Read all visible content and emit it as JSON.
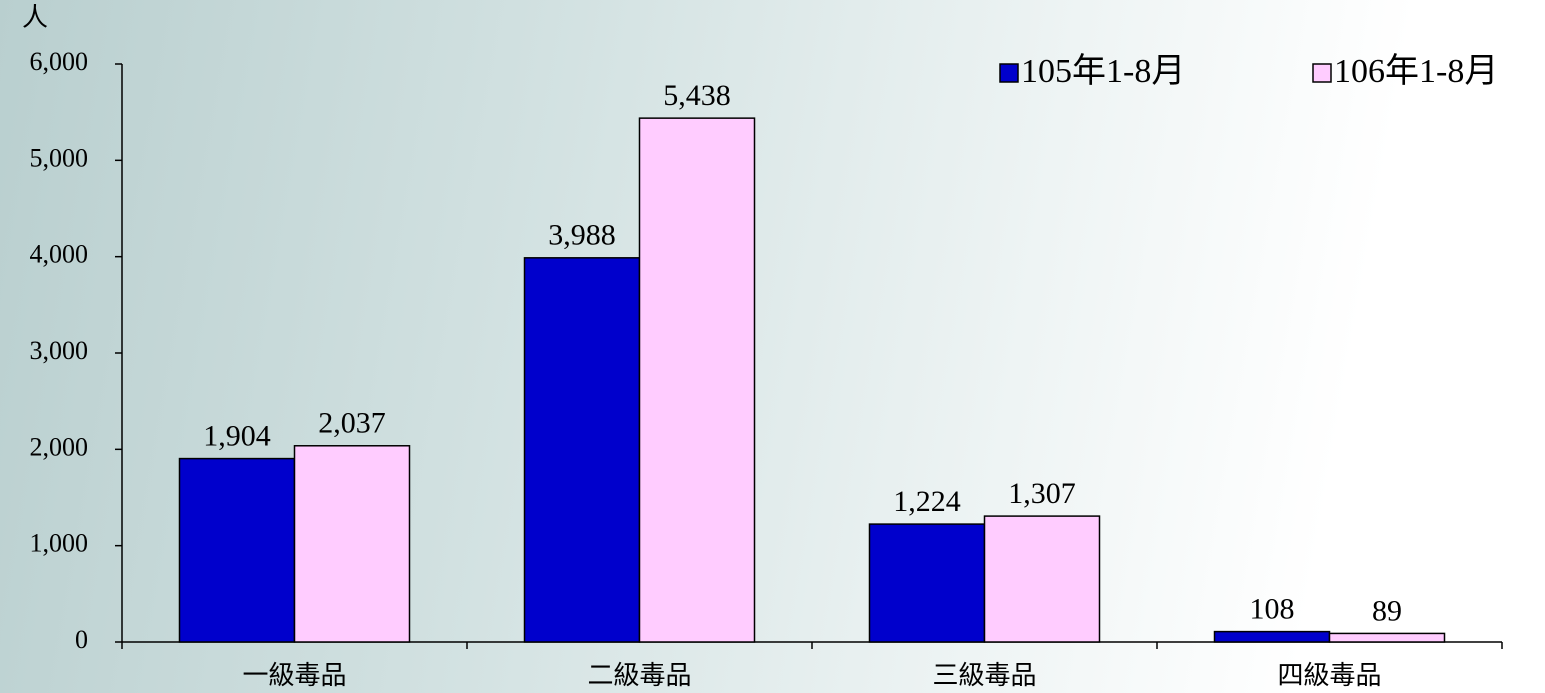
{
  "chart_data": {
    "type": "bar",
    "y_label": "人",
    "categories": [
      "一級毒品",
      "二級毒品",
      "三級毒品",
      "四級毒品"
    ],
    "series": [
      {
        "name": "105年1-8月",
        "color": "#0000cc",
        "values": [
          1904,
          3988,
          1224,
          108
        ],
        "value_labels": [
          "1,904",
          "3,988",
          "1,224",
          "108"
        ]
      },
      {
        "name": "106年1-8月",
        "color": "#ffccff",
        "values": [
          2037,
          5438,
          1307,
          89
        ],
        "value_labels": [
          "2,037",
          "5,438",
          "1,307",
          "89"
        ]
      }
    ],
    "ylim": [
      0,
      6000
    ],
    "yticks": [
      0,
      {
        "value": 1000,
        "label": "1,000"
      },
      {
        "value": 2000,
        "label": "2,000"
      },
      {
        "value": 3000,
        "label": "3,000"
      },
      {
        "value": 4000,
        "label": "4,000"
      },
      {
        "value": 5000,
        "label": "5,000"
      },
      {
        "value": 6000,
        "label": "6,000"
      }
    ],
    "legend": "top-right"
  }
}
